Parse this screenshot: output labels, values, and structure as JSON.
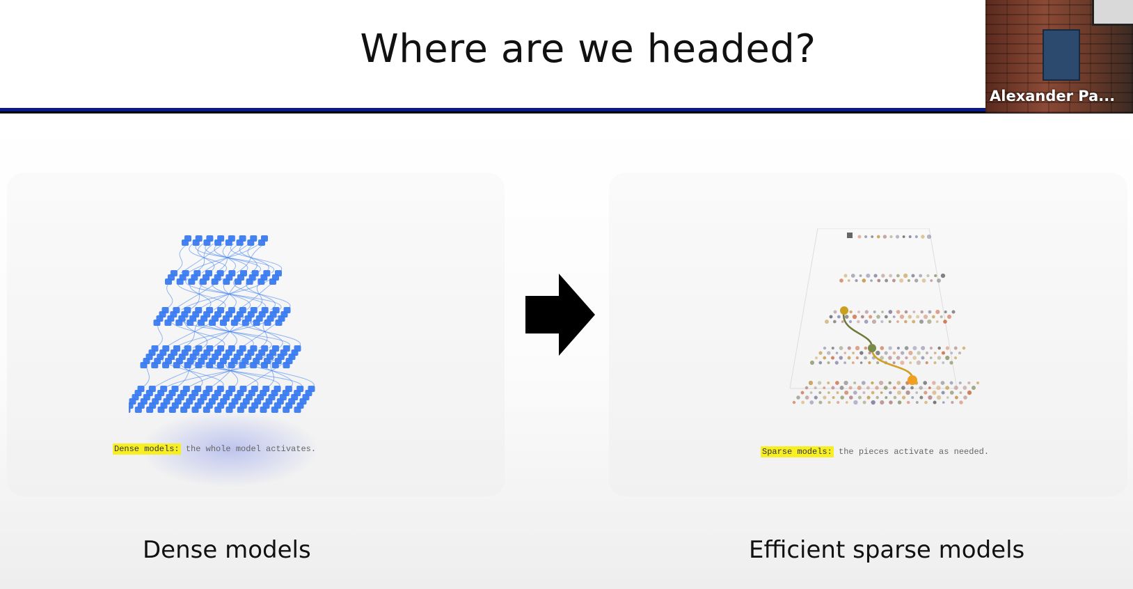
{
  "slide": {
    "title": "Where are we headed?",
    "colors": {
      "rule_blue": "#0a1a8a",
      "highlight": "#f7ee24",
      "dense_blue": "#3b7bf0"
    }
  },
  "video_tile": {
    "participant_name": "Alexander Pa..."
  },
  "left_panel": {
    "caption_highlight": "Dense models:",
    "caption_text": " the whole model activates.",
    "label": "Dense models",
    "figure_icon": "dense-network-icon"
  },
  "arrow_icon": "right-arrow-icon",
  "right_panel": {
    "caption_highlight": "Sparse models:",
    "caption_text": " the pieces activate as needed.",
    "label": "Efficient sparse models",
    "figure_icon": "sparse-network-icon"
  }
}
